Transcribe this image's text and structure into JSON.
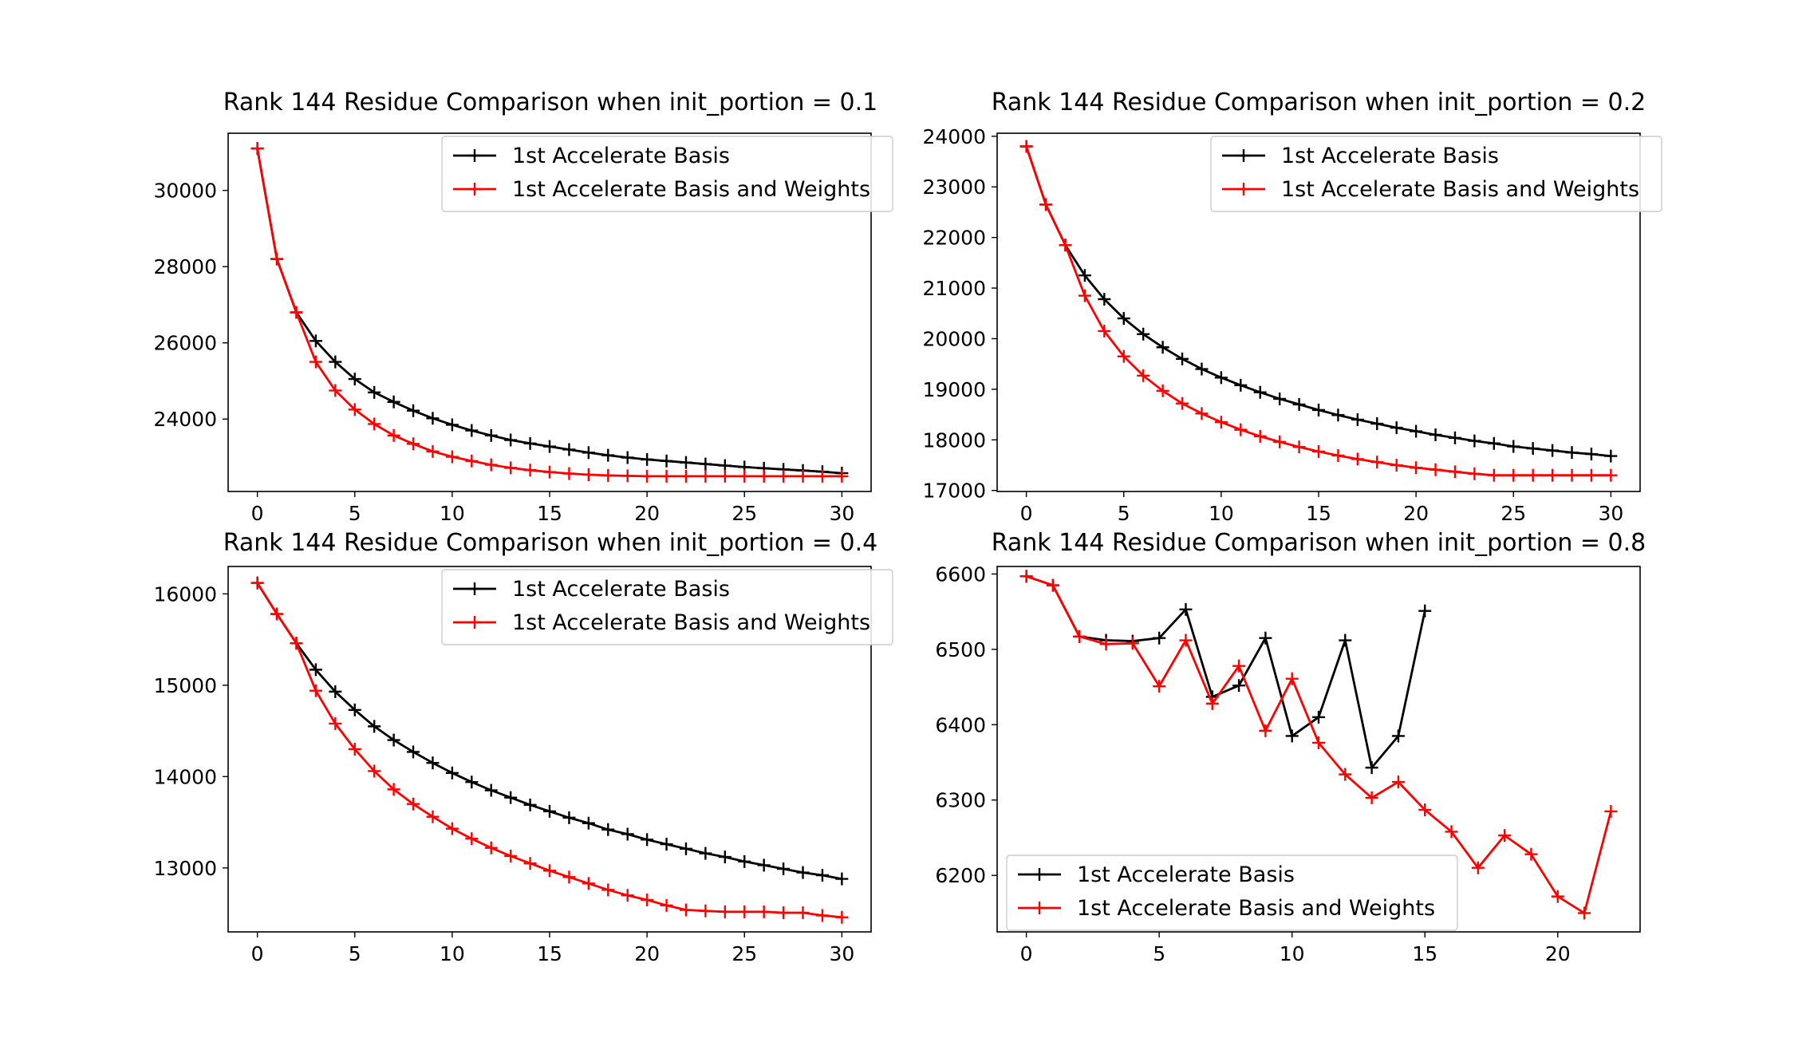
{
  "chart_data": [
    {
      "type": "line",
      "title": "Rank 144 Residue Comparison when init_portion = 0.1",
      "xlabel": "",
      "ylabel": "",
      "xlim": [
        -1.5,
        31.5
      ],
      "ylim": [
        22100,
        31500
      ],
      "xticks": [
        0,
        5,
        10,
        15,
        20,
        25,
        30
      ],
      "yticks": [
        24000,
        26000,
        28000,
        30000
      ],
      "grid": false,
      "legend": "top-right",
      "series": [
        {
          "name": "1st Accelerate Basis",
          "color": "#000000",
          "x": [
            0,
            1,
            2,
            3,
            4,
            5,
            6,
            7,
            8,
            9,
            10,
            11,
            12,
            13,
            14,
            15,
            16,
            17,
            18,
            19,
            20,
            21,
            22,
            23,
            24,
            25,
            26,
            27,
            28,
            29,
            30
          ],
          "y": [
            31100,
            28200,
            26800,
            26050,
            25500,
            25050,
            24700,
            24450,
            24220,
            24020,
            23850,
            23700,
            23570,
            23450,
            23360,
            23280,
            23200,
            23120,
            23050,
            22990,
            22940,
            22900,
            22860,
            22820,
            22780,
            22740,
            22710,
            22680,
            22650,
            22620,
            22580
          ]
        },
        {
          "name": "1st Accelerate Basis and Weights",
          "color": "#ff0000",
          "x": [
            0,
            1,
            2,
            3,
            4,
            5,
            6,
            7,
            8,
            9,
            10,
            11,
            12,
            13,
            14,
            15,
            16,
            17,
            18,
            19,
            20,
            21,
            22,
            23,
            24,
            25,
            26,
            27,
            28,
            29,
            30
          ],
          "y": [
            31100,
            28200,
            26800,
            25500,
            24750,
            24250,
            23870,
            23570,
            23350,
            23150,
            23010,
            22900,
            22800,
            22720,
            22660,
            22610,
            22570,
            22540,
            22520,
            22510,
            22500,
            22500,
            22500,
            22500,
            22500,
            22500,
            22500,
            22500,
            22500,
            22500,
            22500
          ]
        }
      ]
    },
    {
      "type": "line",
      "title": "Rank 144 Residue Comparison when init_portion = 0.2",
      "xlabel": "",
      "ylabel": "",
      "xlim": [
        -1.5,
        31.5
      ],
      "ylim": [
        16980,
        24060
      ],
      "xticks": [
        0,
        5,
        10,
        15,
        20,
        25,
        30
      ],
      "yticks": [
        17000,
        18000,
        19000,
        20000,
        21000,
        22000,
        23000,
        24000
      ],
      "grid": false,
      "legend": "top-right",
      "series": [
        {
          "name": "1st Accelerate Basis",
          "color": "#000000",
          "x": [
            0,
            1,
            2,
            3,
            4,
            5,
            6,
            7,
            8,
            9,
            10,
            11,
            12,
            13,
            14,
            15,
            16,
            17,
            18,
            19,
            20,
            21,
            22,
            23,
            24,
            25,
            26,
            27,
            28,
            29,
            30
          ],
          "y": [
            23800,
            22650,
            21850,
            21250,
            20780,
            20400,
            20090,
            19830,
            19600,
            19400,
            19230,
            19080,
            18940,
            18810,
            18700,
            18590,
            18490,
            18400,
            18320,
            18240,
            18170,
            18100,
            18040,
            17980,
            17930,
            17870,
            17830,
            17790,
            17750,
            17720,
            17680
          ]
        },
        {
          "name": "1st Accelerate Basis and Weights",
          "color": "#ff0000",
          "x": [
            0,
            1,
            2,
            3,
            4,
            5,
            6,
            7,
            8,
            9,
            10,
            11,
            12,
            13,
            14,
            15,
            16,
            17,
            18,
            19,
            20,
            21,
            22,
            23,
            24,
            25,
            26,
            27,
            28,
            29,
            30
          ],
          "y": [
            23800,
            22650,
            21850,
            20850,
            20150,
            19650,
            19270,
            18970,
            18720,
            18520,
            18350,
            18200,
            18070,
            17960,
            17860,
            17770,
            17690,
            17620,
            17560,
            17500,
            17450,
            17410,
            17370,
            17330,
            17300,
            17300,
            17300,
            17300,
            17300,
            17300,
            17300
          ]
        }
      ]
    },
    {
      "type": "line",
      "title": "Rank 144 Residue Comparison when init_portion = 0.4",
      "xlabel": "",
      "ylabel": "",
      "xlim": [
        -1.5,
        31.5
      ],
      "ylim": [
        12300,
        16300
      ],
      "xticks": [
        0,
        5,
        10,
        15,
        20,
        25,
        30
      ],
      "yticks": [
        13000,
        14000,
        15000,
        16000
      ],
      "grid": false,
      "legend": "top-right",
      "series": [
        {
          "name": "1st Accelerate Basis",
          "color": "#000000",
          "x": [
            0,
            1,
            2,
            3,
            4,
            5,
            6,
            7,
            8,
            9,
            10,
            11,
            12,
            13,
            14,
            15,
            16,
            17,
            18,
            19,
            20,
            21,
            22,
            23,
            24,
            25,
            26,
            27,
            28,
            29,
            30
          ],
          "y": [
            16120,
            15780,
            15460,
            15170,
            14930,
            14730,
            14550,
            14400,
            14270,
            14150,
            14040,
            13940,
            13850,
            13770,
            13690,
            13620,
            13550,
            13490,
            13420,
            13370,
            13310,
            13260,
            13210,
            13160,
            13120,
            13070,
            13030,
            12990,
            12950,
            12920,
            12880
          ]
        },
        {
          "name": "1st Accelerate Basis and Weights",
          "color": "#ff0000",
          "x": [
            0,
            1,
            2,
            3,
            4,
            5,
            6,
            7,
            8,
            9,
            10,
            11,
            12,
            13,
            14,
            15,
            16,
            17,
            18,
            19,
            20,
            21,
            22,
            23,
            24,
            25,
            26,
            27,
            28,
            29,
            30
          ],
          "y": [
            16120,
            15780,
            15460,
            14940,
            14580,
            14300,
            14060,
            13860,
            13700,
            13560,
            13430,
            13320,
            13220,
            13130,
            13050,
            12970,
            12900,
            12830,
            12760,
            12700,
            12650,
            12590,
            12540,
            12530,
            12520,
            12520,
            12520,
            12510,
            12510,
            12480,
            12460
          ]
        }
      ]
    },
    {
      "type": "line",
      "title": "Rank 144 Residue Comparison when init_portion = 0.8",
      "xlabel": "",
      "ylabel": "",
      "xlim": [
        -1.1,
        23.1
      ],
      "ylim": [
        6125,
        6610
      ],
      "xticks": [
        0,
        5,
        10,
        15,
        20
      ],
      "yticks": [
        6200,
        6300,
        6400,
        6500,
        6600
      ],
      "grid": false,
      "legend": "bottom-left",
      "series": [
        {
          "name": "1st Accelerate Basis",
          "color": "#000000",
          "x": [
            0,
            1,
            2,
            3,
            4,
            5,
            6,
            7,
            8,
            9,
            10,
            11,
            12,
            13,
            14,
            15
          ],
          "y": [
            6597,
            6585,
            6517,
            6512,
            6511,
            6515,
            6553,
            6437,
            6452,
            6515,
            6385,
            6410,
            6512,
            6343,
            6385,
            6551
          ]
        },
        {
          "name": "1st Accelerate Basis and Weights",
          "color": "#ff0000",
          "x": [
            0,
            1,
            2,
            3,
            4,
            5,
            6,
            7,
            8,
            9,
            10,
            11,
            12,
            13,
            14,
            15,
            16,
            17,
            18,
            19,
            20,
            21,
            22
          ],
          "y": [
            6597,
            6585,
            6517,
            6507,
            6508,
            6451,
            6512,
            6428,
            6478,
            6392,
            6461,
            6376,
            6334,
            6303,
            6324,
            6287,
            6258,
            6210,
            6253,
            6228,
            6172,
            6150,
            6285
          ]
        }
      ]
    }
  ]
}
